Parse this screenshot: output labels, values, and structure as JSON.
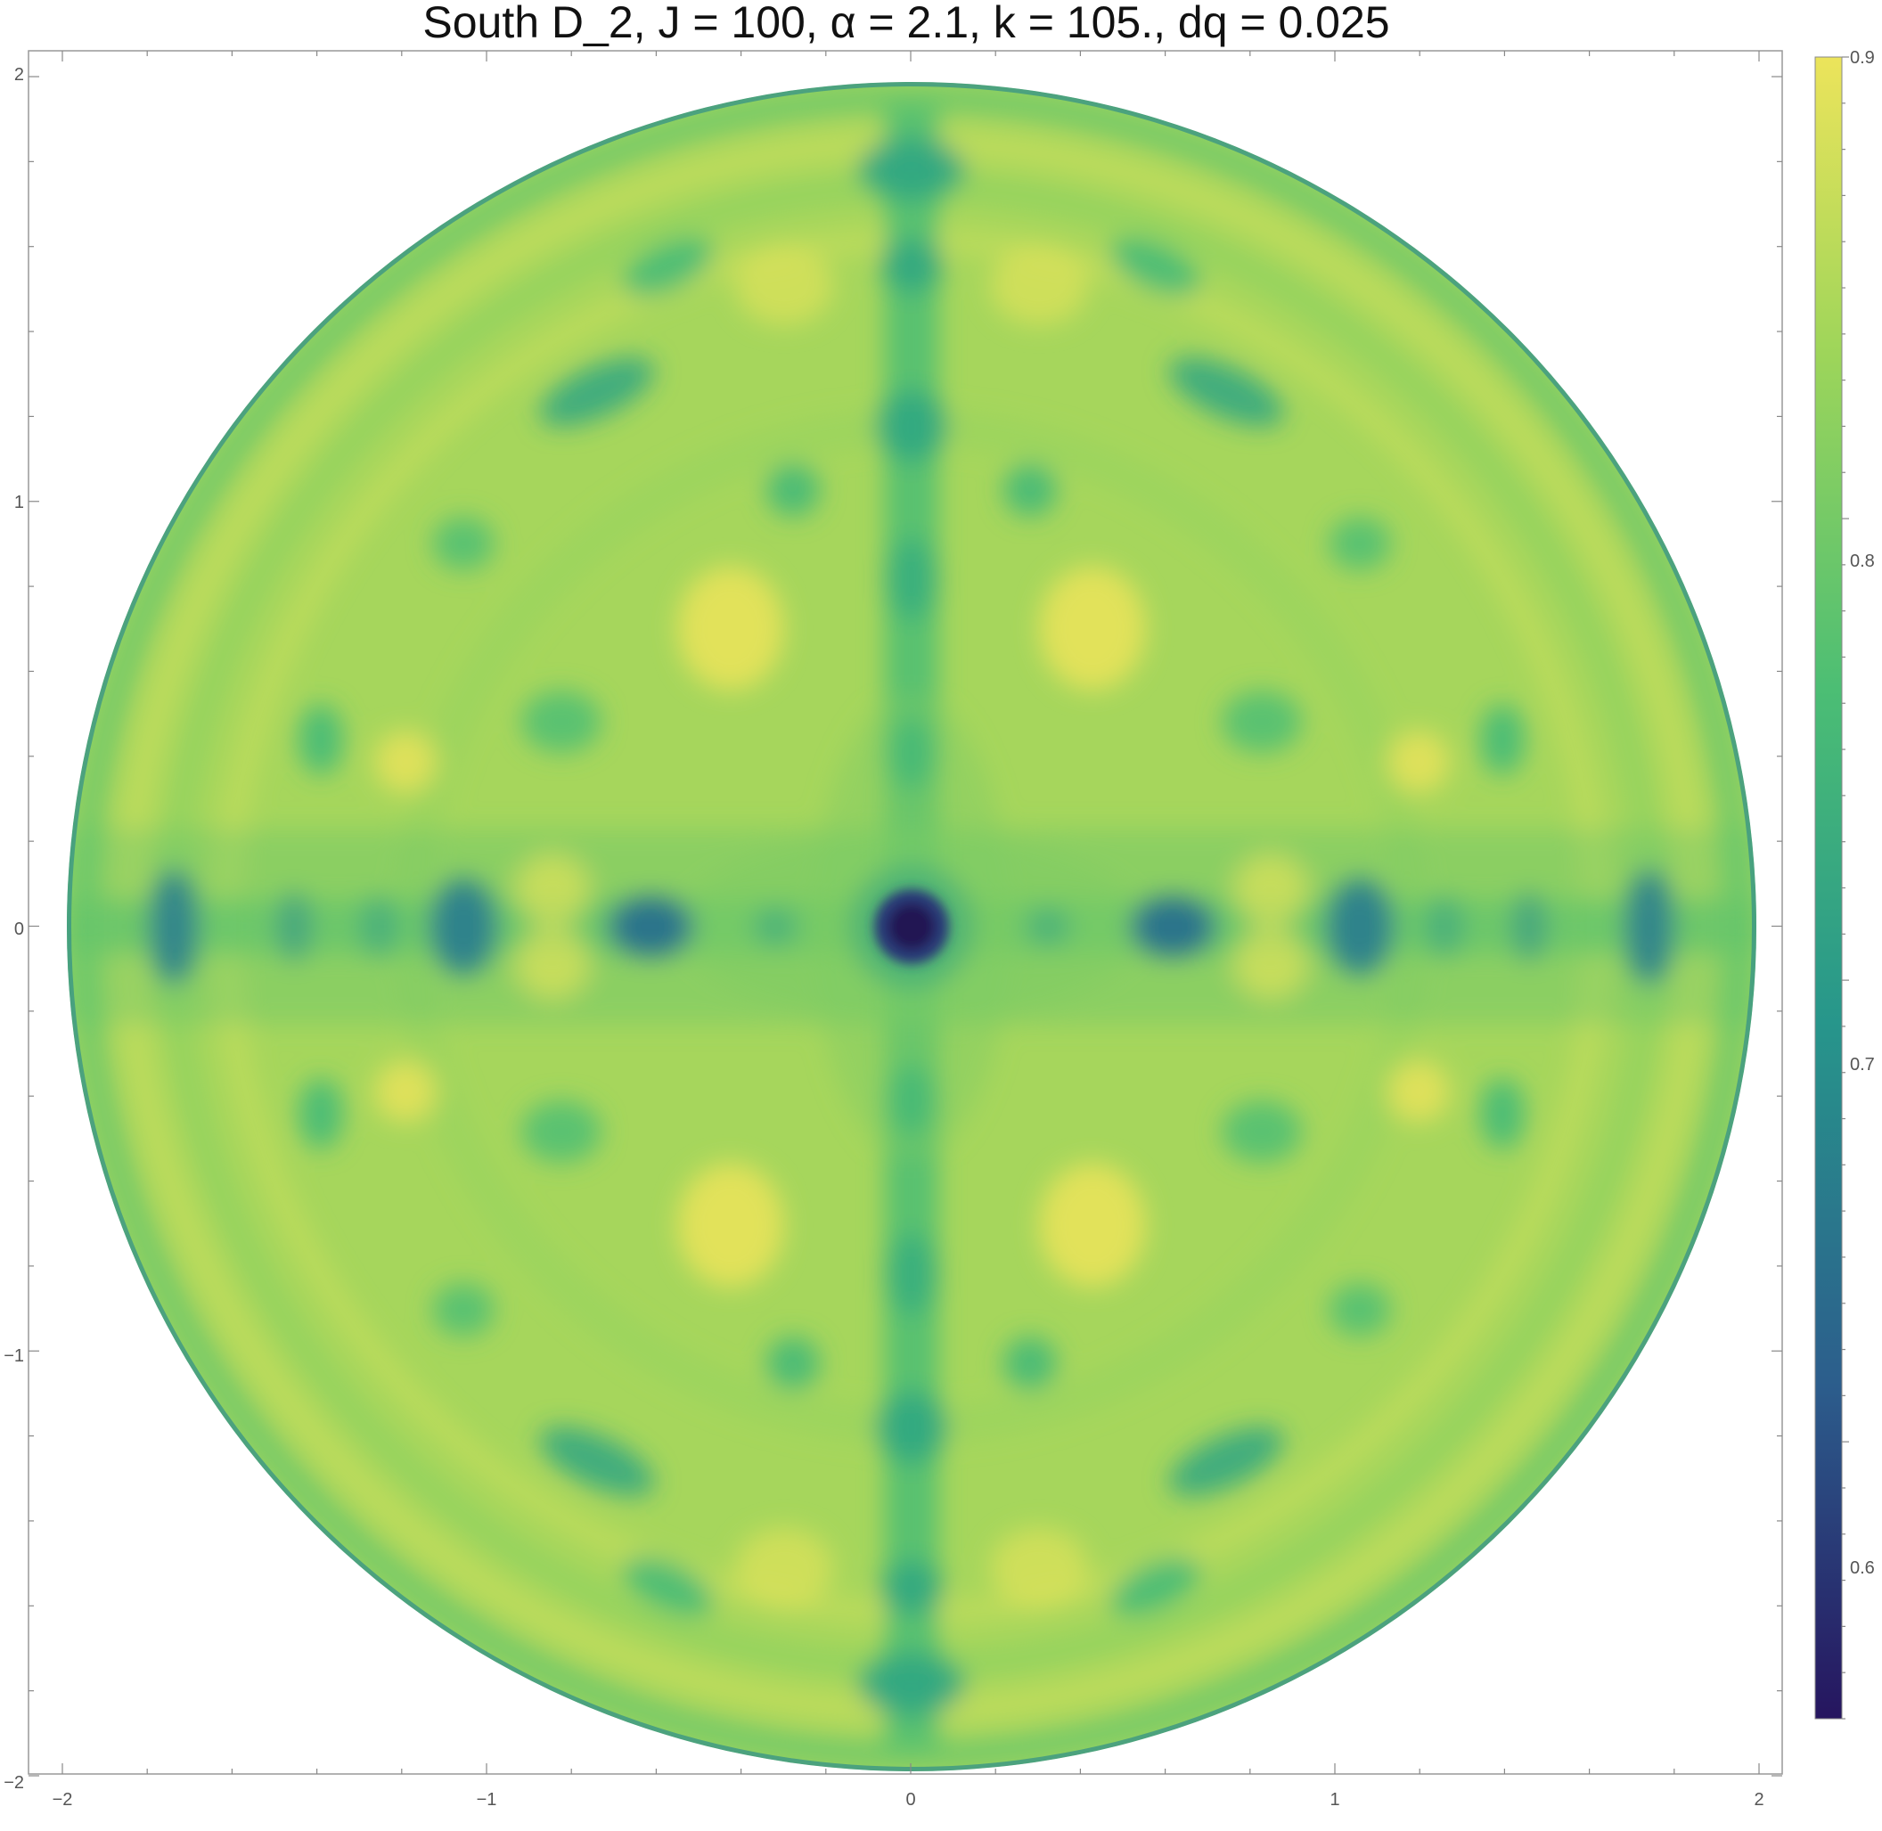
{
  "chart_data": {
    "type": "heatmap",
    "title": "South D_2, J = 100, α = 2.1, k = 105., dq = 0.025",
    "xlabel": "",
    "ylabel": "",
    "xlim": [
      -2,
      2
    ],
    "ylim": [
      -2,
      2
    ],
    "x_ticks": [
      "−2",
      "−1",
      "0",
      "1",
      "2"
    ],
    "y_ticks": [
      "2",
      "1",
      "0",
      "−1",
      "−2"
    ],
    "domain": "disk of radius 2 centered at (0, 0)",
    "color_scale": {
      "name": "viridis",
      "min": 0.54,
      "max": 0.9,
      "ticks": [
        "0.9",
        "0.8",
        "0.7",
        "0.6"
      ],
      "colors": [
        "#26155f",
        "#2c5d8c",
        "#27968b",
        "#4cbe74",
        "#9dd55a",
        "#ece45b"
      ]
    },
    "features": [
      {
        "name": "central minimum",
        "x": 0,
        "y": 0,
        "value": 0.55
      },
      {
        "name": "horizontal minima",
        "x": [
          -1.75,
          -1.07,
          -0.62,
          0.62,
          1.07,
          1.75
        ],
        "y": 0,
        "value": 0.68
      },
      {
        "name": "vertical band minima",
        "x": 0,
        "y": [
          1.77,
          1.55,
          1.2,
          0.82,
          0.45,
          -0.45,
          -0.82,
          -1.2,
          -1.55,
          -1.77
        ],
        "value": 0.75
      },
      {
        "name": "peak regions",
        "x": [
          -0.3,
          0.3,
          -0.3,
          0.3,
          -1.2,
          1.2,
          -1.2,
          1.2
        ],
        "y": [
          0.62,
          0.62,
          -0.62,
          -0.62,
          0.38,
          0.38,
          -0.38,
          -0.38
        ],
        "value": 0.89
      }
    ]
  }
}
